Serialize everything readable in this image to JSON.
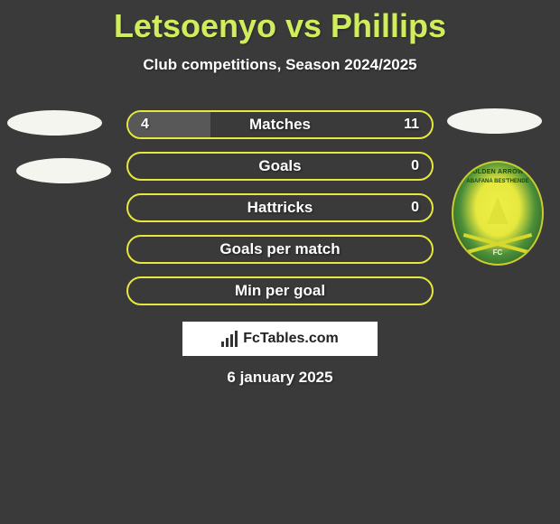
{
  "title": "Letsoenyo vs Phillips",
  "subtitle": "Club competitions, Season 2024/2025",
  "date": "6 january 2025",
  "watermark": "FcTables.com",
  "crest": {
    "top": "AMONTVILLE",
    "mid": "GOLDEN ARROWS",
    "sub": "ABAFANA BES'THENDE",
    "fc": "FC"
  },
  "colors": {
    "title": "#d0ee5c",
    "bar_accent": "#e6e83e",
    "bg": "#3a3a3a"
  },
  "rows": [
    {
      "label": "Matches",
      "left": "4",
      "right": "11",
      "fill_pct": 27,
      "border": "#e6e83e",
      "fill": "#585858"
    },
    {
      "label": "Goals",
      "left": "",
      "right": "0",
      "fill_pct": 0,
      "border": "#e6e83e",
      "fill": "#e6e83e"
    },
    {
      "label": "Hattricks",
      "left": "",
      "right": "0",
      "fill_pct": 0,
      "border": "#e6e83e",
      "fill": "#e6e83e"
    },
    {
      "label": "Goals per match",
      "left": "",
      "right": "",
      "fill_pct": 0,
      "border": "#e6e83e",
      "fill": "#e6e83e"
    },
    {
      "label": "Min per goal",
      "left": "",
      "right": "",
      "fill_pct": 0,
      "border": "#e6e83e",
      "fill": "#e6e83e"
    }
  ]
}
